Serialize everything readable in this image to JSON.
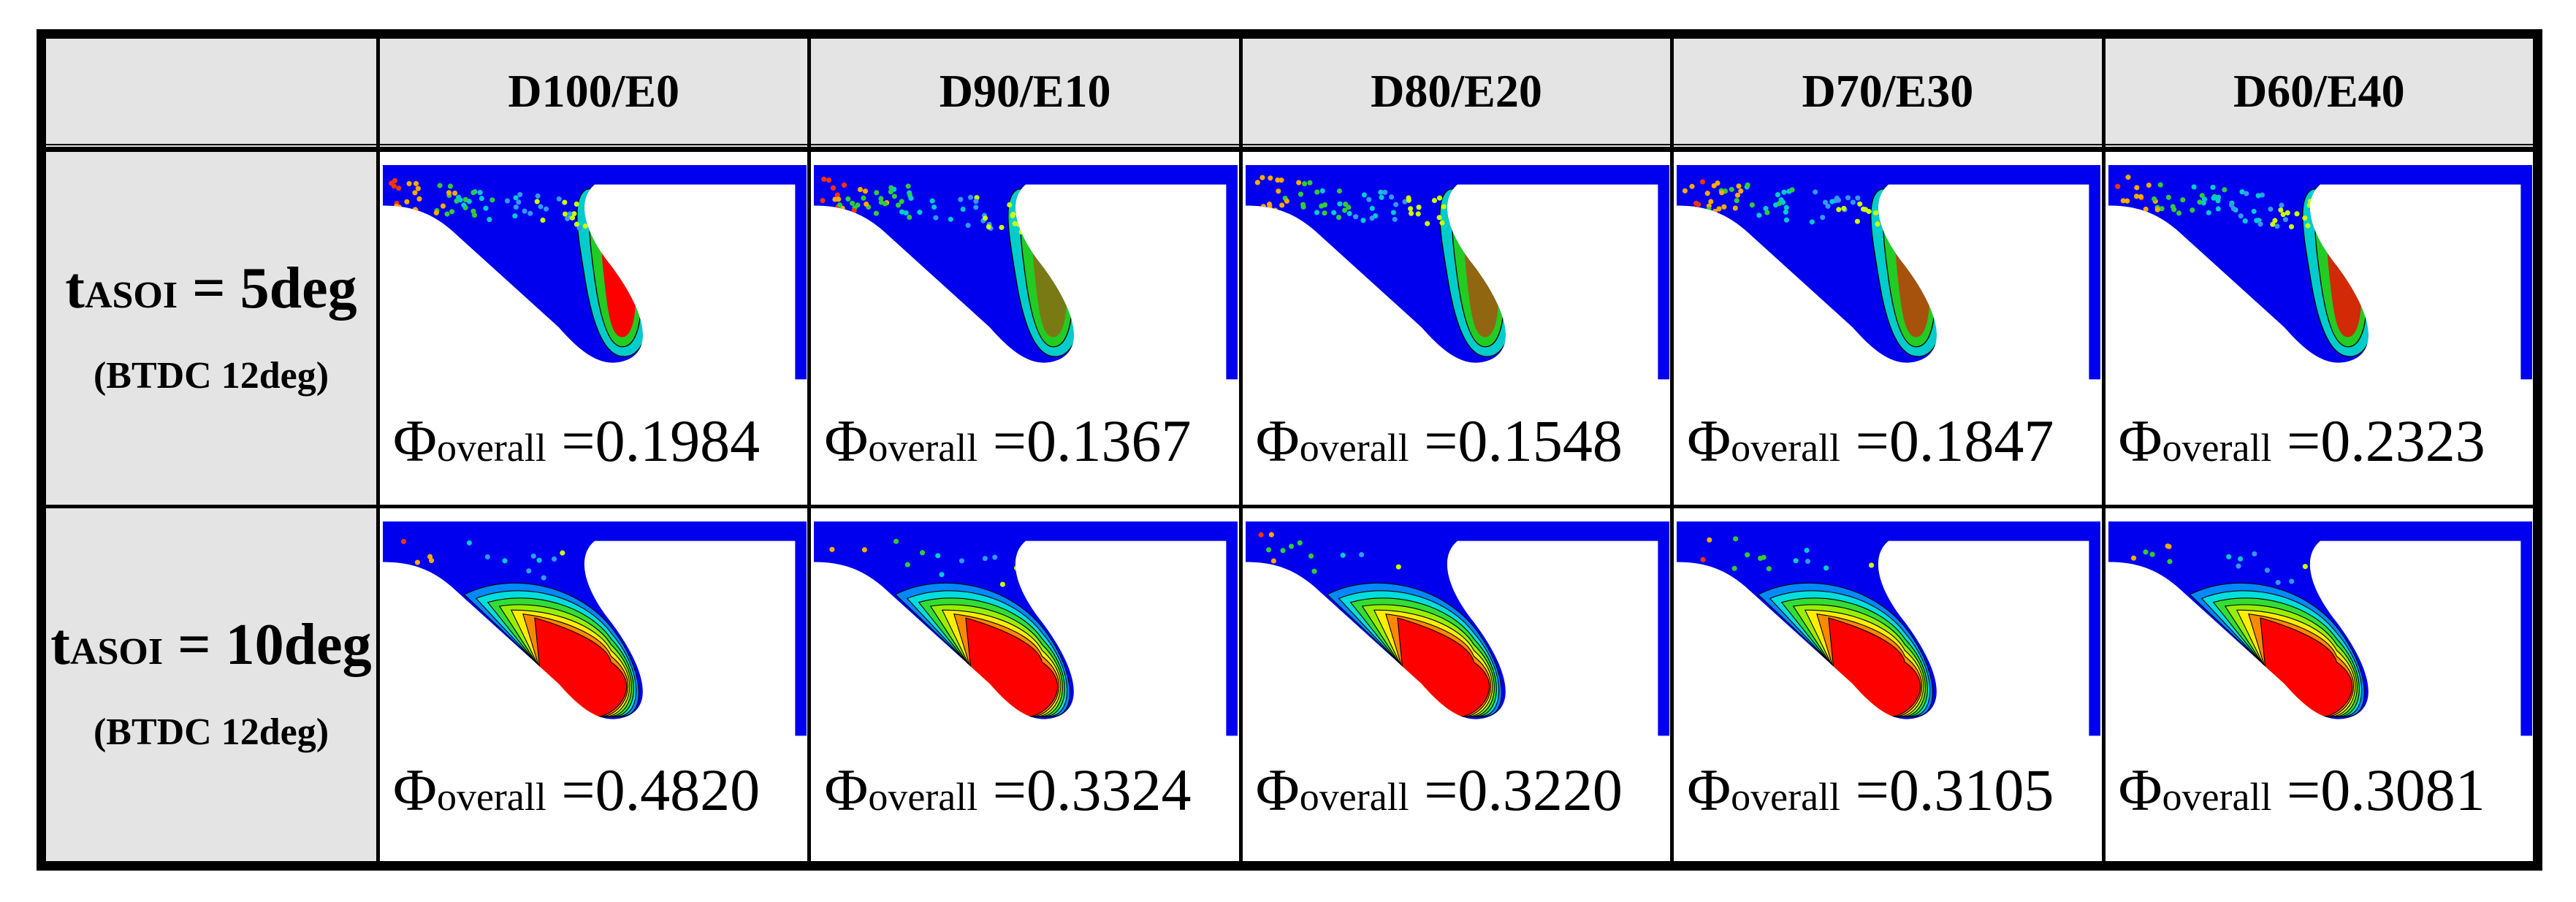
{
  "header": {
    "corner": "",
    "columns": [
      "D100/E0",
      "D90/E10",
      "D80/E20",
      "D70/E30",
      "D60/E40"
    ]
  },
  "rows": [
    {
      "label_t": "t",
      "label_sub": "ASOI",
      "label_rest": " = 5deg",
      "note": "(BTDC 12deg)",
      "phi_symbol": "Φ",
      "phi_sub": "overall",
      "values": [
        "=0.1984",
        "=0.1367",
        "=0.1548",
        "=0.1847",
        "=0.2323"
      ]
    },
    {
      "label_t": "t",
      "label_sub": "ASOI",
      "label_rest": " = 10deg",
      "note": "(BTDC 12deg)",
      "phi_symbol": "Φ",
      "phi_sub": "overall",
      "values": [
        "=0.4820",
        "=0.3324",
        "=0.3220",
        "=0.3105",
        "=0.3081"
      ]
    }
  ],
  "colors": {
    "domain": "#0000ee",
    "header_bg": "#e4e4e4",
    "border": "#000000"
  }
}
